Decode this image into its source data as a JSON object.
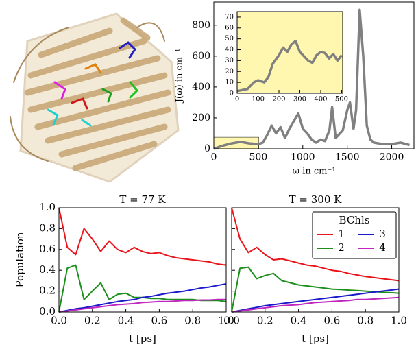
{
  "chart_data": [
    {
      "type": "line",
      "xlabel": "ω in cm⁻¹",
      "ylabel": "J(ω) in cm⁻¹",
      "x": [
        0,
        50,
        100,
        200,
        300,
        400,
        500,
        550,
        600,
        650,
        700,
        750,
        800,
        850,
        900,
        950,
        1000,
        1050,
        1100,
        1150,
        1200,
        1250,
        1300,
        1330,
        1370,
        1450,
        1500,
        1530,
        1570,
        1600,
        1640,
        1680,
        1720,
        1760,
        1800,
        1900,
        2000,
        2100,
        2200
      ],
      "values": [
        0,
        10,
        20,
        35,
        45,
        35,
        30,
        40,
        90,
        150,
        100,
        140,
        70,
        130,
        180,
        230,
        130,
        100,
        60,
        40,
        60,
        50,
        120,
        270,
        70,
        120,
        250,
        300,
        130,
        250,
        900,
        600,
        150,
        60,
        40,
        30,
        30,
        40,
        25
      ],
      "color": "#808080",
      "xlim": [
        0,
        2250
      ],
      "ylim": [
        0,
        950
      ],
      "xticks": [
        0,
        500,
        1000,
        1500,
        2000
      ],
      "yticks": [
        0,
        200,
        400,
        600,
        800
      ]
    },
    {
      "type": "line",
      "x": [
        0,
        50,
        80,
        100,
        130,
        150,
        170,
        200,
        220,
        240,
        260,
        280,
        300,
        320,
        340,
        360,
        380,
        400,
        420,
        440,
        460,
        480,
        500
      ],
      "values": [
        2,
        4,
        10,
        12,
        10,
        15,
        27,
        35,
        42,
        38,
        45,
        48,
        38,
        34,
        30,
        28,
        35,
        38,
        37,
        32,
        36,
        30,
        35
      ],
      "color": "#808080",
      "background": "#fff7b0",
      "xlim": [
        0,
        505
      ],
      "ylim": [
        0,
        75
      ],
      "xticks": [
        0,
        100,
        200,
        300,
        400,
        500
      ],
      "yticks": [
        0,
        10,
        20,
        30,
        40,
        50,
        60,
        70
      ]
    },
    {
      "type": "line",
      "title": "T = 77 K",
      "xlabel": "t [ps]",
      "ylabel": "Population",
      "x": [
        0,
        0.05,
        0.1,
        0.15,
        0.2,
        0.25,
        0.3,
        0.35,
        0.4,
        0.45,
        0.5,
        0.55,
        0.6,
        0.65,
        0.7,
        0.75,
        0.8,
        0.85,
        0.9,
        0.95,
        1.0
      ],
      "series": [
        {
          "name": "1",
          "color": "#e8141a",
          "values": [
            1.0,
            0.62,
            0.55,
            0.8,
            0.7,
            0.58,
            0.68,
            0.6,
            0.57,
            0.62,
            0.58,
            0.56,
            0.57,
            0.54,
            0.52,
            0.51,
            0.5,
            0.49,
            0.48,
            0.46,
            0.45
          ]
        },
        {
          "name": "2",
          "color": "#1d8f1d",
          "values": [
            0,
            0.42,
            0.45,
            0.12,
            0.2,
            0.28,
            0.12,
            0.17,
            0.18,
            0.14,
            0.14,
            0.13,
            0.13,
            0.12,
            0.12,
            0.12,
            0.12,
            0.11,
            0.11,
            0.11,
            0.1
          ]
        },
        {
          "name": "3",
          "color": "#1a1acc",
          "values": [
            0,
            0.015,
            0.03,
            0.04,
            0.055,
            0.07,
            0.085,
            0.1,
            0.11,
            0.12,
            0.14,
            0.15,
            0.165,
            0.18,
            0.19,
            0.2,
            0.215,
            0.23,
            0.24,
            0.255,
            0.27
          ]
        },
        {
          "name": "4",
          "color": "#bf26bf",
          "values": [
            0,
            0.01,
            0.02,
            0.03,
            0.04,
            0.05,
            0.06,
            0.07,
            0.075,
            0.08,
            0.09,
            0.095,
            0.1,
            0.1,
            0.105,
            0.11,
            0.11,
            0.115,
            0.115,
            0.12,
            0.12
          ]
        }
      ],
      "xlim": [
        0,
        1
      ],
      "ylim": [
        0,
        1
      ],
      "xticks": [
        {
          "value": 0,
          "label": "0.0"
        },
        {
          "value": 0.2,
          "label": "0.2"
        },
        {
          "value": 0.4,
          "label": "0.4"
        },
        {
          "value": 0.6,
          "label": "0.6"
        },
        {
          "value": 0.8,
          "label": "0.8"
        },
        {
          "value": 1,
          "label": "1.0"
        }
      ],
      "yticks": [
        {
          "value": 0,
          "label": "0.0"
        },
        {
          "value": 0.2,
          "label": "0.2"
        },
        {
          "value": 0.4,
          "label": "0.4"
        },
        {
          "value": 0.6,
          "label": "0.6"
        },
        {
          "value": 0.8,
          "label": "0.8"
        },
        {
          "value": 1,
          "label": "1.0"
        }
      ]
    },
    {
      "type": "line",
      "title": "T = 300 K",
      "xlabel": "t [ps]",
      "legend_title": "BChls",
      "legend": "upper right",
      "x": [
        0,
        0.05,
        0.1,
        0.15,
        0.2,
        0.25,
        0.3,
        0.35,
        0.4,
        0.45,
        0.5,
        0.55,
        0.6,
        0.65,
        0.7,
        0.75,
        0.8,
        0.85,
        0.9,
        0.95,
        1.0
      ],
      "series": [
        {
          "name": "1",
          "color": "#e8141a",
          "values": [
            1.0,
            0.7,
            0.57,
            0.62,
            0.55,
            0.5,
            0.51,
            0.49,
            0.47,
            0.45,
            0.44,
            0.42,
            0.4,
            0.39,
            0.37,
            0.355,
            0.34,
            0.33,
            0.32,
            0.31,
            0.3
          ]
        },
        {
          "name": "2",
          "color": "#1d8f1d",
          "values": [
            0,
            0.42,
            0.43,
            0.32,
            0.35,
            0.37,
            0.3,
            0.28,
            0.26,
            0.25,
            0.24,
            0.23,
            0.22,
            0.215,
            0.21,
            0.205,
            0.2,
            0.195,
            0.19,
            0.185,
            0.18
          ]
        },
        {
          "name": "3",
          "color": "#1a1acc",
          "values": [
            0,
            0.015,
            0.03,
            0.045,
            0.06,
            0.07,
            0.08,
            0.09,
            0.1,
            0.11,
            0.12,
            0.13,
            0.14,
            0.15,
            0.16,
            0.17,
            0.18,
            0.19,
            0.2,
            0.21,
            0.22
          ]
        },
        {
          "name": "4",
          "color": "#bf26bf",
          "values": [
            0,
            0.01,
            0.02,
            0.03,
            0.04,
            0.05,
            0.06,
            0.065,
            0.07,
            0.08,
            0.09,
            0.095,
            0.1,
            0.105,
            0.11,
            0.12,
            0.12,
            0.125,
            0.13,
            0.135,
            0.14
          ]
        }
      ],
      "xlim": [
        0,
        1
      ],
      "ylim": [
        0,
        1
      ],
      "xticks": [
        {
          "value": 0,
          "label": "0.0"
        },
        {
          "value": 0.2,
          "label": "0.2"
        },
        {
          "value": 0.4,
          "label": "0.4"
        },
        {
          "value": 0.6,
          "label": "0.6"
        },
        {
          "value": 0.8,
          "label": "0.8"
        },
        {
          "value": 1,
          "label": "1.0"
        }
      ],
      "yticks": [
        0,
        0.2,
        0.4,
        0.6,
        0.8,
        1
      ]
    }
  ]
}
